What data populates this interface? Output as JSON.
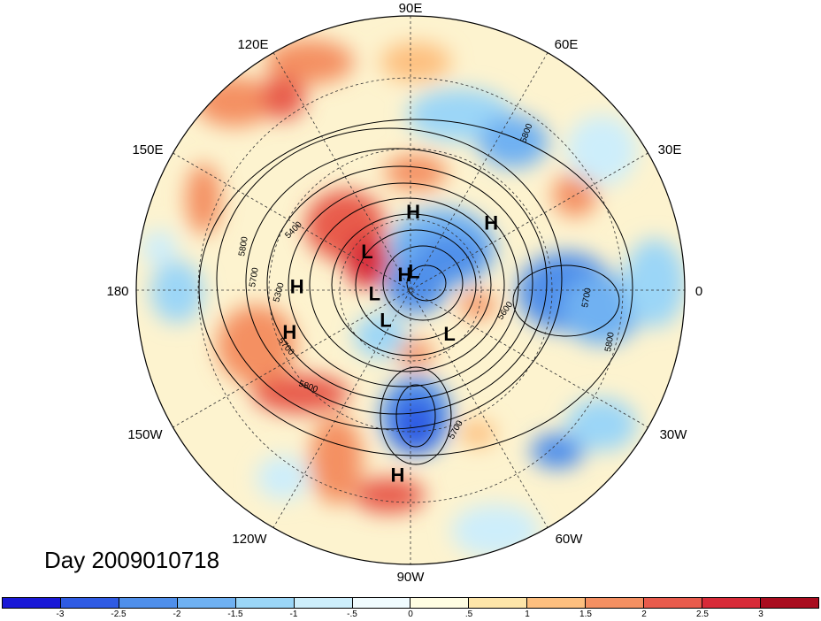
{
  "title": "Day 2009010718",
  "longitude_labels": [
    "90E",
    "60E",
    "30E",
    "0",
    "30W",
    "60W",
    "90W",
    "120W",
    "150W",
    "180",
    "150E",
    "120E"
  ],
  "pressure_centers": [
    {
      "type": "H",
      "lon": 88,
      "lat": 58
    },
    {
      "type": "H",
      "lon": 40,
      "lat": 48
    },
    {
      "type": "H",
      "lon": 178,
      "lat": 45
    },
    {
      "type": "H",
      "lon": -161,
      "lat": 40
    },
    {
      "type": "H",
      "lon": -94,
      "lat": 22
    },
    {
      "type": "H",
      "lon": 110,
      "lat": 83
    },
    {
      "type": "L",
      "lon": 138,
      "lat": 66
    },
    {
      "type": "L",
      "lon": 80,
      "lat": 82
    },
    {
      "type": "L",
      "lon": -175,
      "lat": 75
    },
    {
      "type": "L",
      "lon": -130,
      "lat": 74
    },
    {
      "type": "L",
      "lon": -48,
      "lat": 66
    }
  ],
  "contour_labels": [
    "5800",
    "5400",
    "5800",
    "5700",
    "5300",
    "5700",
    "5800",
    "5600",
    "5700",
    "5800",
    "5700"
  ],
  "colorbar": {
    "colors": [
      "#1a19d6",
      "#2f5be3",
      "#4f8fea",
      "#6fb1f2",
      "#9bd6f7",
      "#cdeefb",
      "#f0fbfe",
      "#fffde2",
      "#fde5a9",
      "#fdbf7f",
      "#f49062",
      "#e85b4c",
      "#d72b38",
      "#a90d1f"
    ],
    "tick_labels": [
      "-3",
      "-2.5",
      "-2",
      "-1.5",
      "-1",
      "-.5",
      "0",
      ".5",
      "1",
      "1.5",
      "2",
      "2.5",
      "3"
    ]
  },
  "colors": {
    "positive_anomaly": "#f3915f",
    "negative_anomaly": "#4f8fea",
    "neutral": "#fff7d6"
  }
}
